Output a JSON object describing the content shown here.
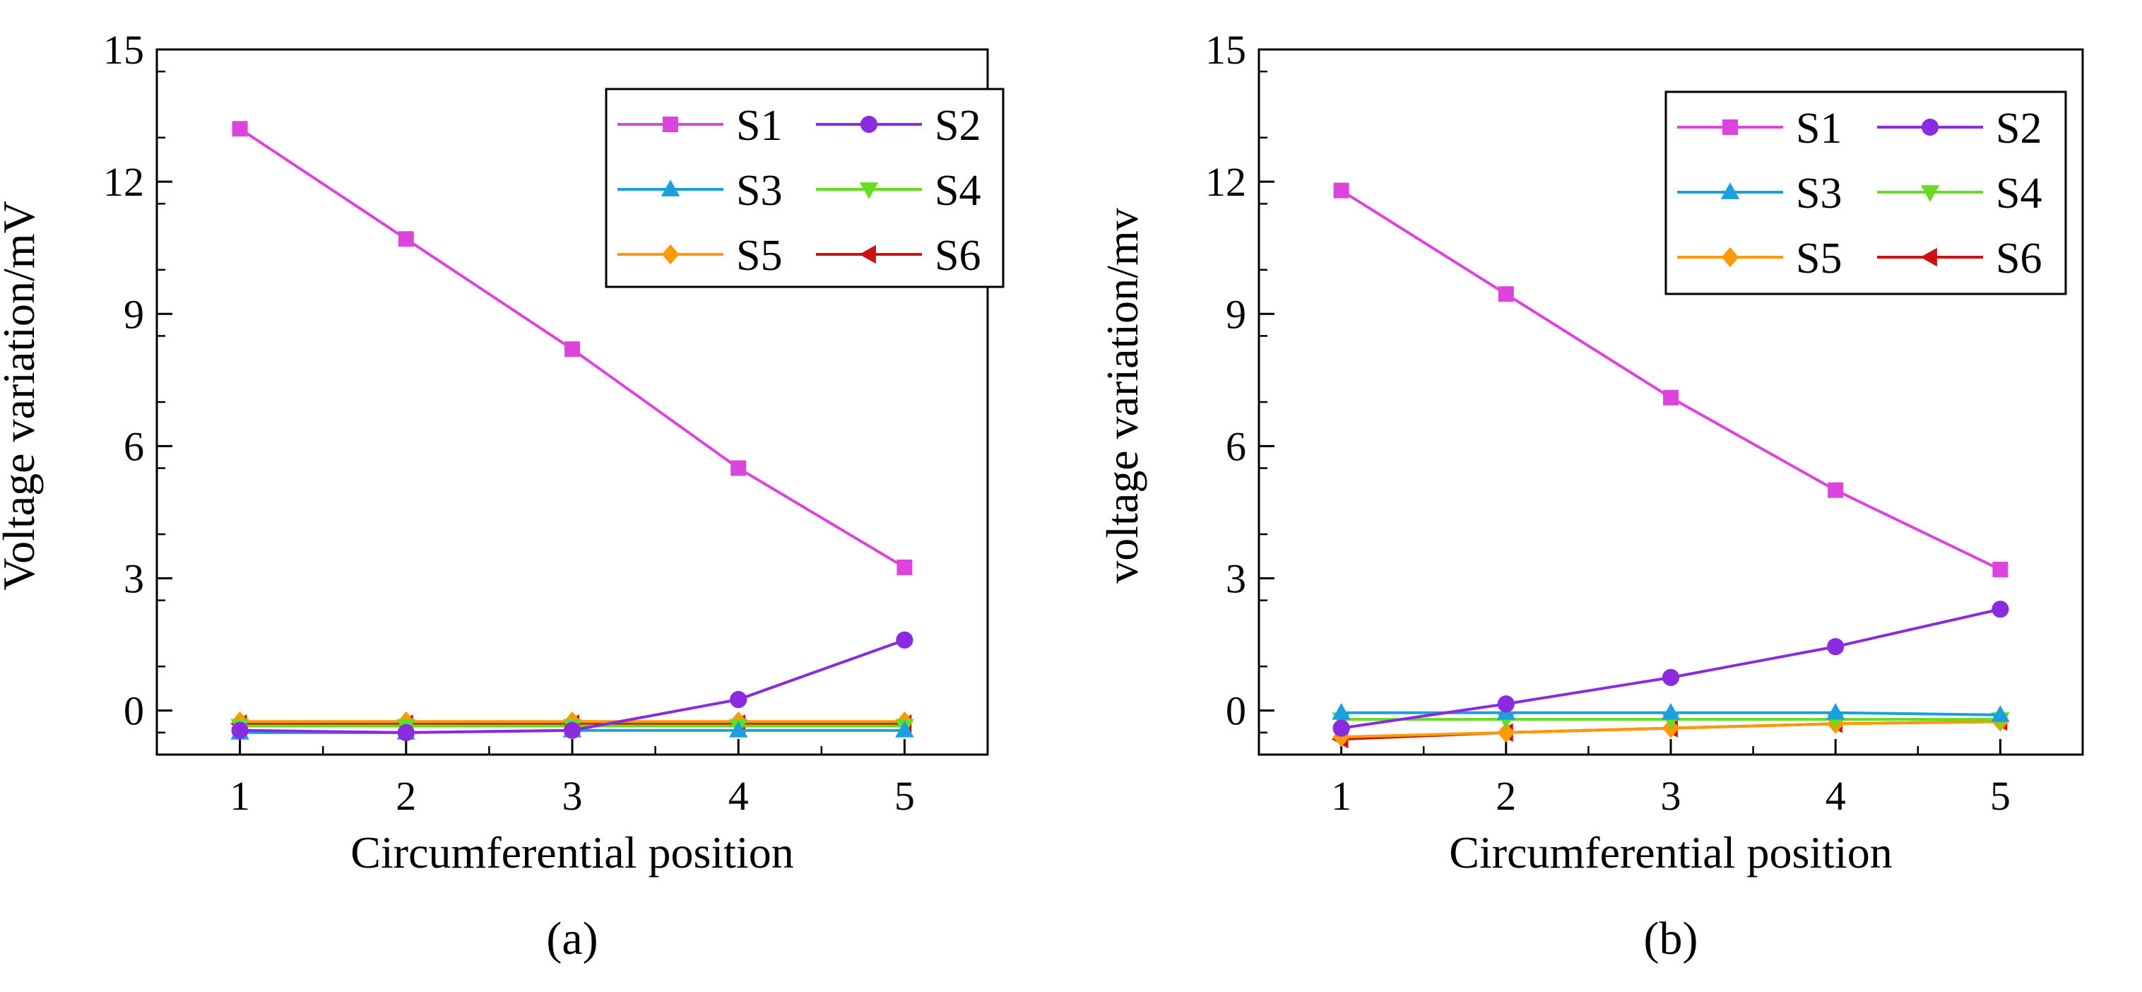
{
  "chart_data": [
    {
      "type": "line",
      "panel_label": "(a)",
      "xlabel": "Circumferential position",
      "ylabel": "Voltage variation/mV",
      "x": [
        1,
        2,
        3,
        4,
        5
      ],
      "xticks": [
        "1",
        "2",
        "3",
        "4",
        "5"
      ],
      "yticks": [
        "0",
        "3",
        "6",
        "9",
        "12",
        "15"
      ],
      "xlim": [
        0.5,
        5.5
      ],
      "ylim": [
        -1.0,
        15.0
      ],
      "grid": false,
      "legend_position": "top-right",
      "series": [
        {
          "name": "S1",
          "color": "#dd44dd",
          "marker": "square",
          "values": [
            13.2,
            10.7,
            8.2,
            5.5,
            3.25
          ]
        },
        {
          "name": "S2",
          "color": "#8a2be2",
          "marker": "circle",
          "values": [
            -0.45,
            -0.5,
            -0.45,
            0.25,
            1.6
          ]
        },
        {
          "name": "S3",
          "color": "#1a9fe0",
          "marker": "triangle-up",
          "values": [
            -0.5,
            -0.5,
            -0.45,
            -0.45,
            -0.45
          ]
        },
        {
          "name": "S4",
          "color": "#66dd22",
          "marker": "triangle-down",
          "values": [
            -0.35,
            -0.35,
            -0.35,
            -0.35,
            -0.35
          ]
        },
        {
          "name": "S5",
          "color": "#ff9900",
          "marker": "diamond",
          "values": [
            -0.25,
            -0.25,
            -0.25,
            -0.25,
            -0.25
          ]
        },
        {
          "name": "S6",
          "color": "#cc1111",
          "marker": "triangle-left",
          "values": [
            -0.3,
            -0.3,
            -0.3,
            -0.3,
            -0.3
          ]
        }
      ]
    },
    {
      "type": "line",
      "panel_label": "(b)",
      "xlabel": "Circumferential position",
      "ylabel": "voltage variation/mv",
      "x": [
        1,
        2,
        3,
        4,
        5
      ],
      "xticks": [
        "1",
        "2",
        "3",
        "4",
        "5"
      ],
      "yticks": [
        "0",
        "3",
        "6",
        "9",
        "12",
        "15"
      ],
      "xlim": [
        0.5,
        5.5
      ],
      "ylim": [
        -1.0,
        15.0
      ],
      "grid": false,
      "legend_position": "top-right",
      "series": [
        {
          "name": "S1",
          "color": "#dd44dd",
          "marker": "square",
          "values": [
            11.8,
            9.45,
            7.1,
            5.0,
            3.2
          ]
        },
        {
          "name": "S2",
          "color": "#8a2be2",
          "marker": "circle",
          "values": [
            -0.4,
            0.15,
            0.75,
            1.45,
            2.3
          ]
        },
        {
          "name": "S3",
          "color": "#1a9fe0",
          "marker": "triangle-up",
          "values": [
            -0.05,
            -0.05,
            -0.05,
            -0.05,
            -0.1
          ]
        },
        {
          "name": "S4",
          "color": "#66dd22",
          "marker": "triangle-down",
          "values": [
            -0.2,
            -0.2,
            -0.2,
            -0.2,
            -0.2
          ]
        },
        {
          "name": "S5",
          "color": "#ff9900",
          "marker": "diamond",
          "values": [
            -0.6,
            -0.5,
            -0.4,
            -0.3,
            -0.25
          ]
        },
        {
          "name": "S6",
          "color": "#cc1111",
          "marker": "triangle-left",
          "values": [
            -0.65,
            -0.5,
            -0.4,
            -0.3,
            -0.25
          ]
        }
      ]
    }
  ]
}
